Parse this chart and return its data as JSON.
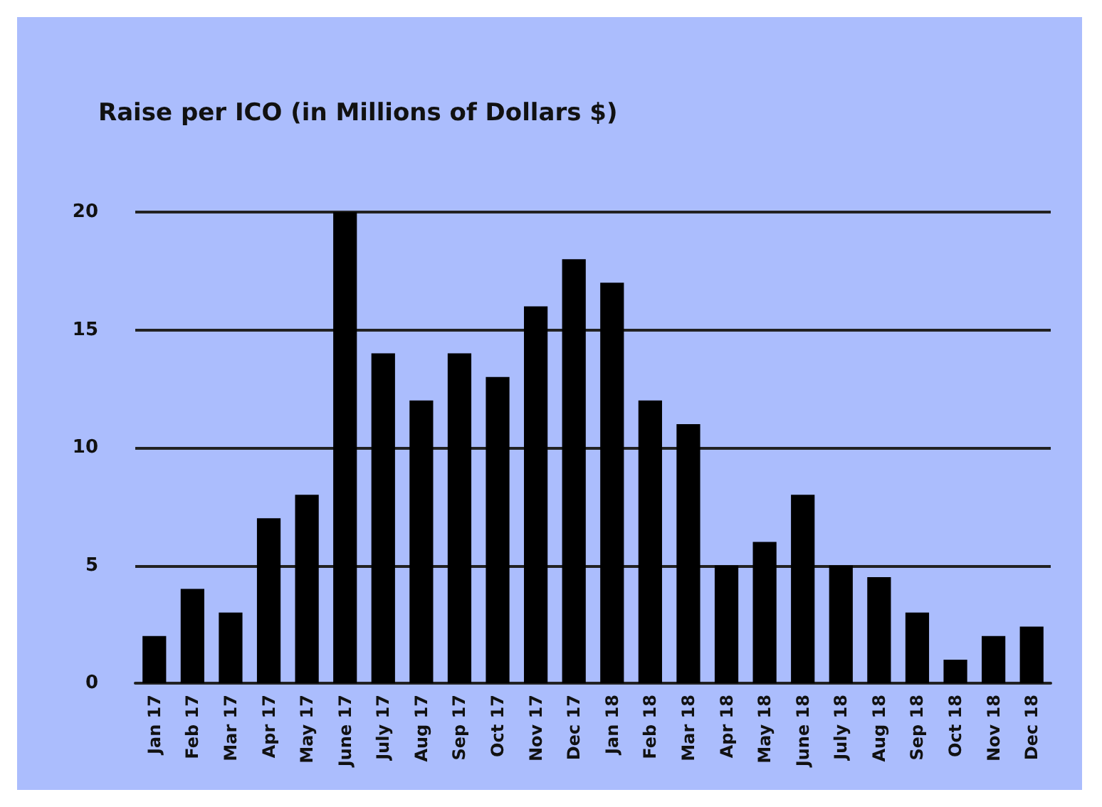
{
  "chart_data": {
    "type": "bar",
    "title": "Raise per ICO (in Millions of Dollars $)",
    "categories": [
      "Jan 17",
      "Feb 17",
      "Mar 17",
      "Apr 17",
      "May 17",
      "June 17",
      "July 17",
      "Aug 17",
      "Sep 17",
      "Oct 17",
      "Nov 17",
      "Dec 17",
      "Jan 18",
      "Feb 18",
      "Mar 18",
      "Apr 18",
      "May 18",
      "June 18",
      "July 18",
      "Aug 18",
      "Sep 18",
      "Oct 18",
      "Nov 18",
      "Dec 18"
    ],
    "values": [
      2,
      4,
      3,
      7,
      8,
      20,
      14,
      12,
      14,
      13,
      16,
      18,
      17,
      12,
      11,
      5,
      6,
      8,
      5,
      4.5,
      3,
      1,
      2,
      2.4
    ],
    "color": "#000000",
    "ylim": [
      0,
      20
    ],
    "yticks": [
      0,
      5,
      10,
      15,
      20
    ],
    "grid": "y"
  }
}
